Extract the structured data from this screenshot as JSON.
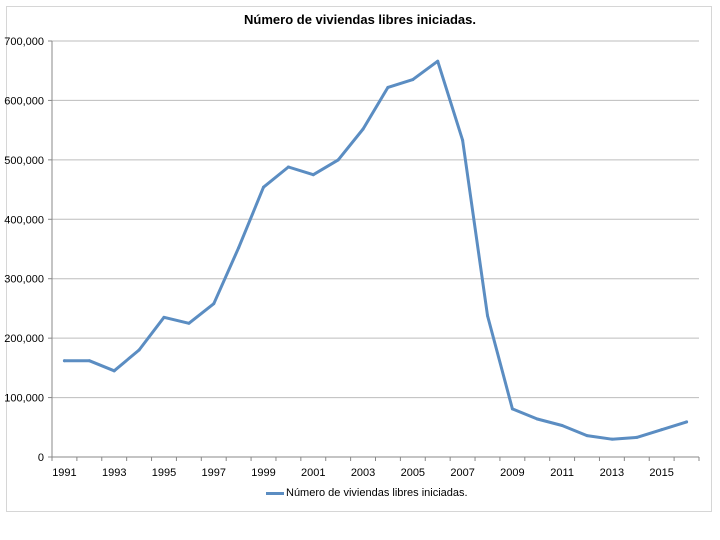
{
  "chart_data": {
    "type": "line",
    "title": "Número de viviendas libres iniciadas.",
    "xlabel": "",
    "ylabel": "",
    "ylim": [
      0,
      700000
    ],
    "y_ticks": [
      "0",
      "100,000",
      "200,000",
      "300,000",
      "400,000",
      "500,000",
      "600,000",
      "700,000"
    ],
    "x_ticks": [
      "1991",
      "1993",
      "1995",
      "1997",
      "1999",
      "2001",
      "2003",
      "2005",
      "2007",
      "2009",
      "2011",
      "2013",
      "2015"
    ],
    "grid": true,
    "legend_position": "bottom",
    "series": [
      {
        "name": "Número de viviendas libres iniciadas.",
        "color": "#5b8dc2",
        "x": [
          1991,
          1992,
          1993,
          1994,
          1995,
          1996,
          1997,
          1998,
          1999,
          2000,
          2001,
          2002,
          2003,
          2004,
          2005,
          2006,
          2007,
          2008,
          2009,
          2010,
          2011,
          2012,
          2013,
          2014,
          2015,
          2016
        ],
        "values": [
          162000,
          162000,
          145000,
          180000,
          235000,
          225000,
          258000,
          352000,
          454000,
          488000,
          475000,
          500000,
          552000,
          622000,
          635000,
          666000,
          533000,
          238000,
          81000,
          64000,
          53000,
          36000,
          30000,
          33000,
          46000,
          59000
        ]
      }
    ]
  }
}
